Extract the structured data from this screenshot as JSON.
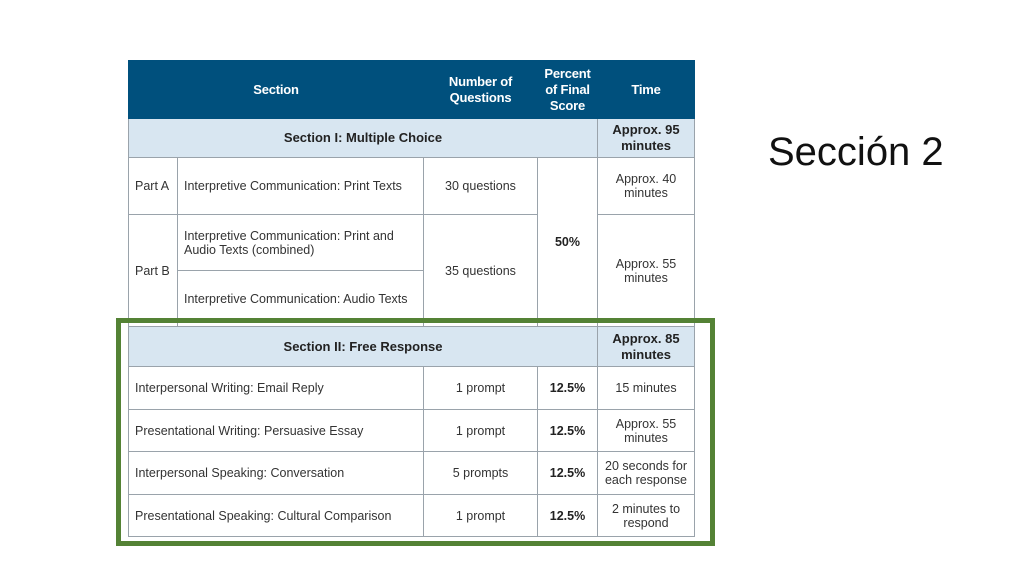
{
  "slide_title": "Sección 2",
  "colors": {
    "header_bg": "#00507d",
    "section_bg": "#d8e6f1",
    "highlight_border": "#548235"
  },
  "table": {
    "headers": {
      "section": "Section",
      "num_questions": "Number of Questions",
      "percent": "Percent of Final Score",
      "time": "Time"
    },
    "section1": {
      "title": "Section I: Multiple Choice",
      "time": "Approx. 95 minutes",
      "percent": "50%",
      "part_a": {
        "label": "Part A",
        "desc": "Interpretive Communication: Print Texts",
        "questions": "30 questions",
        "time": "Approx. 40 minutes"
      },
      "part_b": {
        "label": "Part B",
        "desc1": "Interpretive Communication: Print and Audio Texts (combined)",
        "desc2": "Interpretive Communication: Audio Texts",
        "questions": "35 questions",
        "time": "Approx. 55 minutes"
      }
    },
    "section2": {
      "title": "Section II: Free Response",
      "time": "Approx. 85 minutes",
      "rows": [
        {
          "task": "Interpersonal Writing: Email Reply",
          "questions": "1 prompt",
          "percent": "12.5%",
          "time": "15 minutes"
        },
        {
          "task": "Presentational Writing: Persuasive Essay",
          "questions": "1 prompt",
          "percent": "12.5%",
          "time": "Approx. 55 minutes"
        },
        {
          "task": "Interpersonal Speaking: Conversation",
          "questions": "5 prompts",
          "percent": "12.5%",
          "time": "20 seconds for each response"
        },
        {
          "task": "Presentational Speaking: Cultural Comparison",
          "questions": "1 prompt",
          "percent": "12.5%",
          "time": "2 minutes to respond"
        }
      ]
    }
  }
}
